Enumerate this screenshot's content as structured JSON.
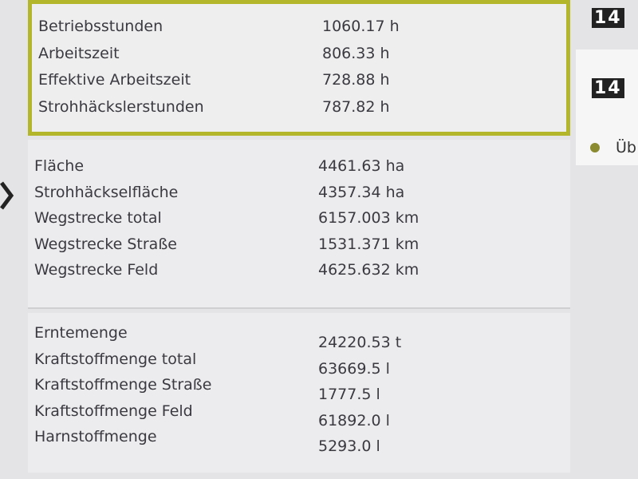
{
  "sections": [
    {
      "rows": [
        {
          "label": "Betriebsstunden",
          "value": "1060.17 h"
        },
        {
          "label": "Arbeitszeit",
          "value": "806.33 h"
        },
        {
          "label": "Effektive Arbeitszeit",
          "value": "728.88 h"
        },
        {
          "label": "Strohhäckslerstunden",
          "value": "787.82 h"
        }
      ]
    },
    {
      "rows": [
        {
          "label": "Fläche",
          "value": "4461.63 ha"
        },
        {
          "label": "Strohhäckselfläche",
          "value": "4357.34 ha"
        },
        {
          "label": "Wegstrecke total",
          "value": "6157.003 km"
        },
        {
          "label": "Wegstrecke Straße",
          "value": "1531.371 km"
        },
        {
          "label": "Wegstrecke Feld",
          "value": "4625.632 km"
        }
      ]
    },
    {
      "rows": [
        {
          "label": "Erntemenge",
          "value": "24220.53 t"
        },
        {
          "label": "Kraftstoffmenge total",
          "value": "63669.5 l"
        },
        {
          "label": "Kraftstoffmenge Straße",
          "value": "1777.5 l"
        },
        {
          "label": "Kraftstoffmenge Feld",
          "value": "61892.0 l"
        },
        {
          "label": "Harnstoffmenge",
          "value": "5293.0 l"
        }
      ]
    }
  ],
  "sidebar": {
    "icons": [
      "14",
      "14"
    ],
    "item": "Üb"
  }
}
